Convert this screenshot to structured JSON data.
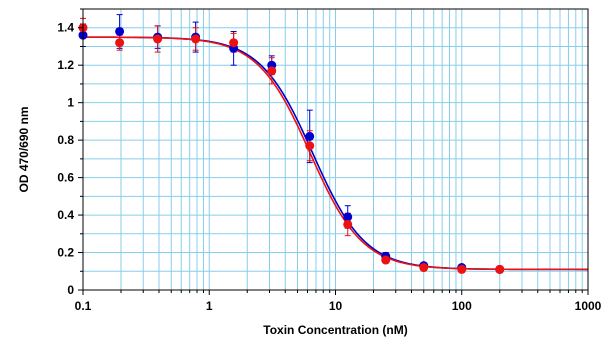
{
  "chart_data": {
    "type": "scatter",
    "title": "",
    "xlabel": "Toxin Concentration (nM)",
    "ylabel": "OD 470/690 nm",
    "x_scale": "log",
    "xlim": [
      0.1,
      1000
    ],
    "ylim": [
      0,
      1.5
    ],
    "x_ticks": [
      "0.1",
      "1",
      "10",
      "100",
      "1000"
    ],
    "y_ticks": [
      "0",
      "0.2",
      "0.4",
      "0.6",
      "0.8",
      "1",
      "1.2",
      "1.4"
    ],
    "grid": true,
    "grid_color": "#87ceeb",
    "legend": "none",
    "series": [
      {
        "color": "#0000cc",
        "x": [
          0.1,
          0.195,
          0.39,
          0.78,
          1.56,
          3.125,
          6.25,
          12.5,
          25,
          50,
          100,
          200
        ],
        "y": [
          1.36,
          1.38,
          1.35,
          1.35,
          1.29,
          1.2,
          0.82,
          0.39,
          0.18,
          0.13,
          0.12,
          0.11
        ],
        "err": [
          0.06,
          0.09,
          0.06,
          0.08,
          0.09,
          0.05,
          0.14,
          0.06,
          0.02,
          0.01,
          0.01,
          0.005
        ],
        "fit": {
          "top": 1.35,
          "bottom": 0.11,
          "ec50": 6.6,
          "hill": 2.1
        }
      },
      {
        "color": "#ee1111",
        "x": [
          0.1,
          0.195,
          0.39,
          0.78,
          1.56,
          3.125,
          6.25,
          12.5,
          25,
          50,
          100,
          200
        ],
        "y": [
          1.4,
          1.32,
          1.34,
          1.34,
          1.32,
          1.17,
          0.77,
          0.35,
          0.16,
          0.12,
          0.11,
          0.11
        ],
        "err": [
          0.05,
          0.04,
          0.07,
          0.06,
          0.05,
          0.07,
          0.08,
          0.06,
          0.015,
          0.01,
          0.01,
          0.005
        ],
        "fit": {
          "top": 1.35,
          "bottom": 0.11,
          "ec50": 6.3,
          "hill": 2.1
        }
      }
    ]
  }
}
